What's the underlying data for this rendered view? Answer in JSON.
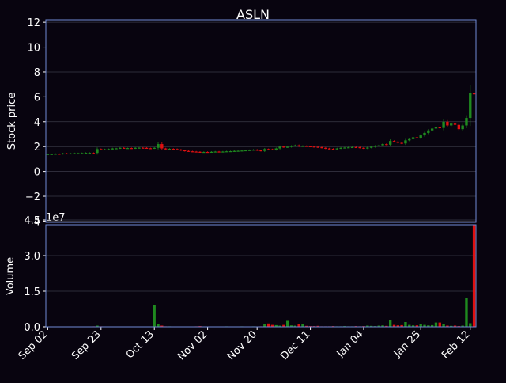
{
  "chart_data": {
    "type": "candlestick",
    "title": "ASLN",
    "colors": {
      "background": "#08040f",
      "axis": "#6f8ad6",
      "grid": "#3a3a48",
      "up": "#1f8a1f",
      "down": "#e01010",
      "text": "#ffffff"
    },
    "price_panel": {
      "ylabel": "Stock price",
      "ylim": [
        -4.1,
        12.2
      ],
      "yticks": [
        "12",
        "10",
        "8",
        "6",
        "4",
        "2",
        "0",
        "−2",
        "−4"
      ],
      "ytick_values": [
        12,
        10,
        8,
        6,
        4,
        2,
        0,
        -2,
        -4
      ],
      "grid": true
    },
    "volume_panel": {
      "ylabel": "Volume",
      "offset_text": "1e7",
      "ylim": [
        0,
        4.3
      ],
      "yticks": [
        "4.5",
        "3.0",
        "1.5",
        "0.0"
      ],
      "ytick_values": [
        4.5,
        3.0,
        1.5,
        0.0
      ],
      "grid": true
    },
    "xticks": [
      {
        "label": "Sep 02",
        "index": 0
      },
      {
        "label": "Sep 23",
        "index": 14
      },
      {
        "label": "Oct 13",
        "index": 28
      },
      {
        "label": "Nov 02",
        "index": 42
      },
      {
        "label": "Nov 20",
        "index": 55
      },
      {
        "label": "Dec 11",
        "index": 69
      },
      {
        "label": "Jan 04",
        "index": 83
      },
      {
        "label": "Jan 25",
        "index": 98
      },
      {
        "label": "Feb 12",
        "index": 111
      }
    ],
    "x_range": [
      -0.5,
      112.5
    ],
    "closes": [
      1.4,
      1.4,
      1.42,
      1.41,
      1.45,
      1.44,
      1.45,
      1.47,
      1.47,
      1.48,
      1.5,
      1.5,
      1.49,
      1.8,
      1.75,
      1.78,
      1.8,
      1.85,
      1.86,
      1.9,
      1.88,
      1.88,
      1.86,
      1.9,
      1.91,
      1.9,
      1.87,
      1.86,
      1.9,
      2.2,
      1.85,
      1.8,
      1.82,
      1.8,
      1.76,
      1.7,
      1.65,
      1.62,
      1.6,
      1.58,
      1.55,
      1.57,
      1.55,
      1.58,
      1.6,
      1.58,
      1.6,
      1.62,
      1.63,
      1.65,
      1.66,
      1.68,
      1.7,
      1.72,
      1.75,
      1.7,
      1.65,
      1.8,
      1.78,
      1.75,
      1.85,
      2.0,
      1.95,
      1.98,
      2.05,
      2.1,
      2.02,
      2.05,
      2.03,
      2.0,
      1.98,
      1.95,
      1.9,
      1.85,
      1.82,
      1.8,
      1.85,
      1.9,
      1.92,
      1.94,
      1.96,
      1.95,
      1.9,
      1.86,
      1.92,
      1.98,
      2.05,
      2.1,
      2.2,
      2.15,
      2.45,
      2.4,
      2.3,
      2.25,
      2.5,
      2.6,
      2.75,
      2.7,
      2.9,
      3.1,
      3.3,
      3.45,
      3.55,
      3.5,
      4.0,
      3.7,
      3.85,
      3.75,
      3.4,
      3.7,
      4.3,
      6.3,
      6.2
    ],
    "volumes": [
      0.01,
      0.01,
      0.01,
      0.01,
      0.01,
      0.01,
      0.01,
      0.01,
      0.01,
      0.01,
      0.01,
      0.01,
      0.02,
      0.05,
      0.02,
      0.01,
      0.01,
      0.01,
      0.01,
      0.01,
      0.01,
      0.01,
      0.01,
      0.01,
      0.01,
      0.01,
      0.01,
      0.01,
      0.9,
      0.1,
      0.05,
      0.02,
      0.02,
      0.01,
      0.01,
      0.01,
      0.01,
      0.01,
      0.01,
      0.02,
      0.03,
      0.01,
      0.01,
      0.01,
      0.01,
      0.01,
      0.01,
      0.02,
      0.01,
      0.01,
      0.01,
      0.02,
      0.01,
      0.01,
      0.02,
      0.01,
      0.02,
      0.1,
      0.14,
      0.08,
      0.07,
      0.05,
      0.08,
      0.25,
      0.06,
      0.05,
      0.12,
      0.1,
      0.04,
      0.03,
      0.03,
      0.04,
      0.02,
      0.02,
      0.02,
      0.03,
      0.02,
      0.02,
      0.03,
      0.02,
      0.02,
      0.03,
      0.02,
      0.03,
      0.05,
      0.04,
      0.03,
      0.05,
      0.06,
      0.04,
      0.3,
      0.08,
      0.06,
      0.07,
      0.2,
      0.08,
      0.06,
      0.06,
      0.1,
      0.08,
      0.06,
      0.07,
      0.18,
      0.18,
      0.1,
      0.05,
      0.04,
      0.05,
      0.03,
      0.05,
      1.2,
      0.15,
      4.3
    ]
  }
}
